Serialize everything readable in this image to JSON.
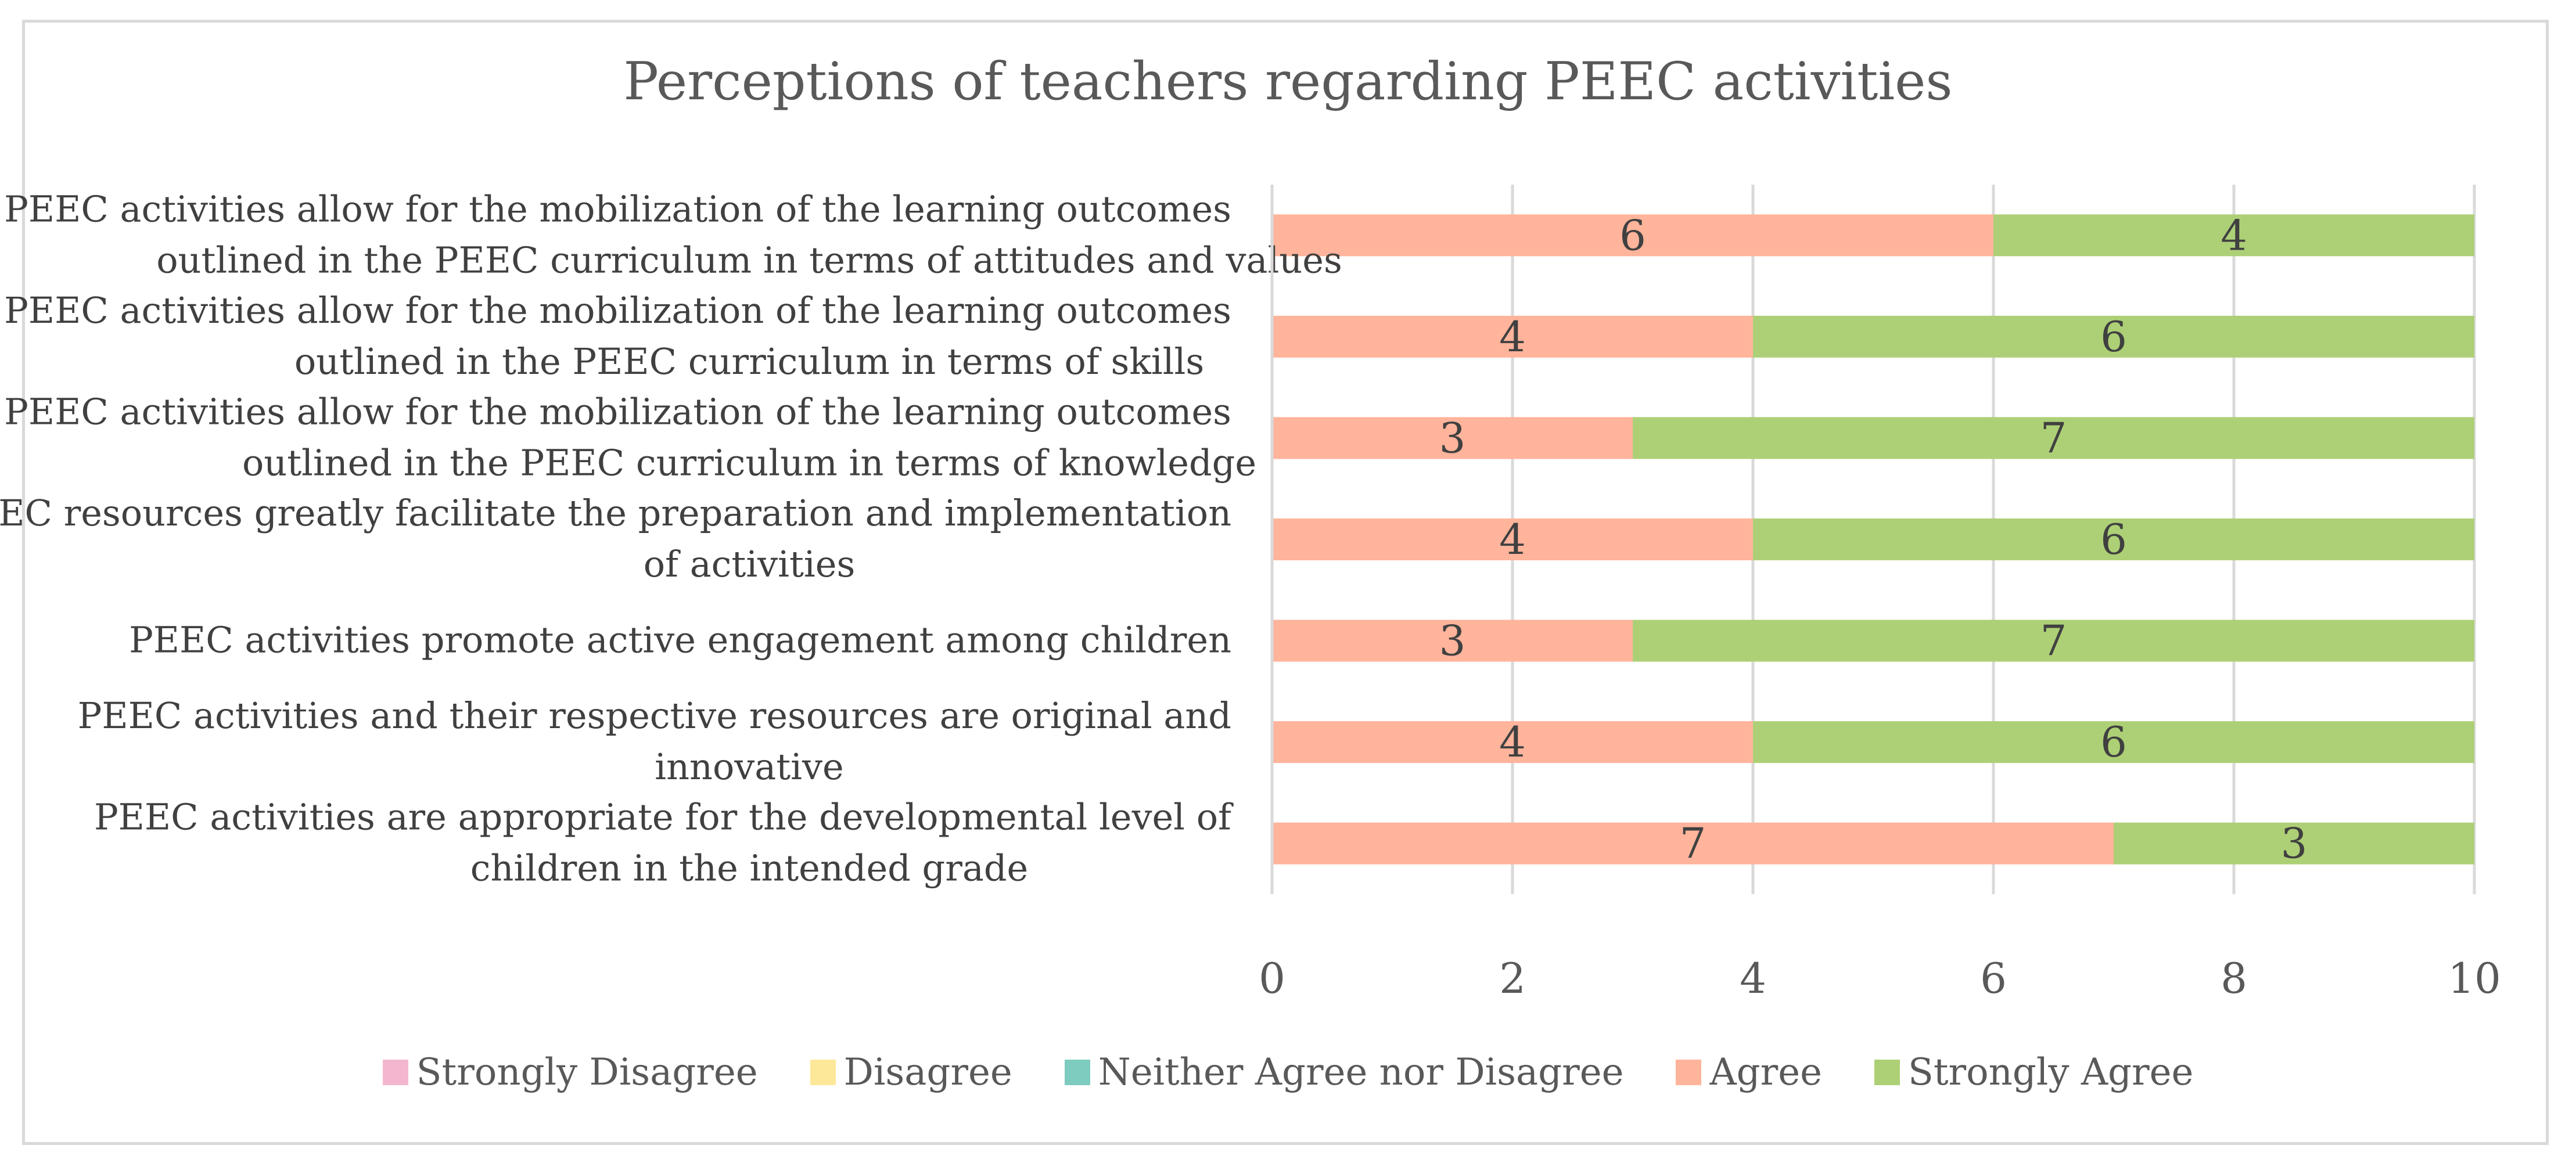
{
  "chart_data": {
    "type": "bar",
    "orientation": "horizontal",
    "stacked": true,
    "title": "Perceptions of teachers regarding PEEC activities",
    "categories": [
      [
        "PEEC activities allow for the mobilization of the learning outcomes",
        "outlined in the PEEC curriculum in terms of attitudes and values"
      ],
      [
        "PEEC activities allow for the mobilization of the learning outcomes",
        "outlined in the PEEC curriculum in terms of skills"
      ],
      [
        "PEEC activities allow for the mobilization of the learning outcomes",
        "outlined in the PEEC curriculum in terms of knowledge"
      ],
      [
        "PEEC resources greatly facilitate the preparation and implementation",
        "of activities"
      ],
      [
        "PEEC activities promote active engagement among children"
      ],
      [
        "PEEC activities and their respective resources are original and",
        "innovative"
      ],
      [
        "PEEC activities are appropriate for the developmental level of",
        "children in the intended grade"
      ]
    ],
    "series": [
      {
        "name": "Strongly Disagree",
        "color": "#f4b6cf",
        "values": [
          0,
          0,
          0,
          0,
          0,
          0,
          0
        ]
      },
      {
        "name": "Disagree",
        "color": "#fde89a",
        "values": [
          0,
          0,
          0,
          0,
          0,
          0,
          0
        ]
      },
      {
        "name": "Neither Agree nor Disagree",
        "color": "#7ecbbf",
        "values": [
          0,
          0,
          0,
          0,
          0,
          0,
          0
        ]
      },
      {
        "name": "Agree",
        "color": "#ffb49b",
        "values": [
          6,
          4,
          3,
          4,
          3,
          4,
          7
        ]
      },
      {
        "name": "Strongly Agree",
        "color": "#add076",
        "values": [
          4,
          6,
          7,
          6,
          7,
          6,
          3
        ]
      }
    ],
    "xlim": [
      0,
      10
    ],
    "xticks": [
      0,
      2,
      4,
      6,
      8,
      10
    ],
    "grid": true,
    "legend_position": "bottom"
  }
}
